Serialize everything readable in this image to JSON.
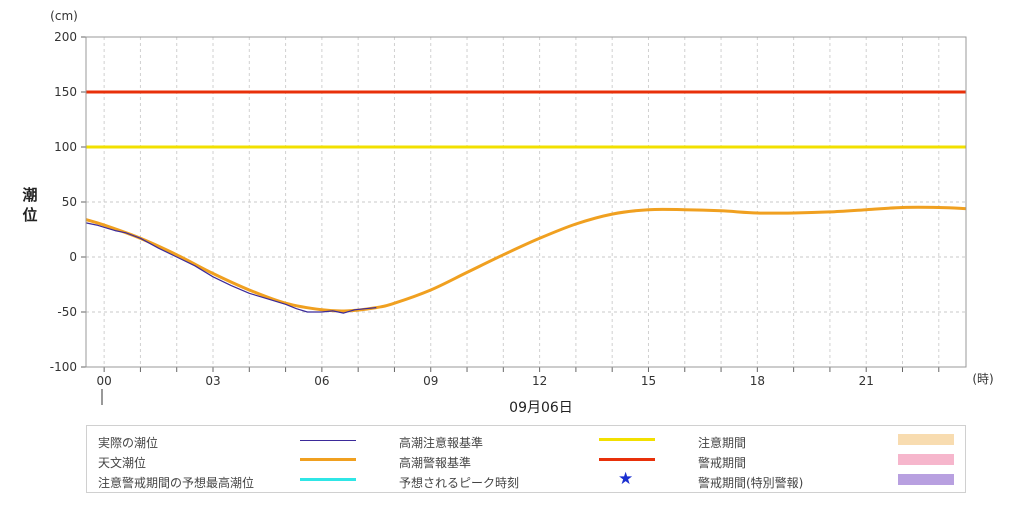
{
  "chart_data": {
    "type": "line",
    "y_unit": "(cm)",
    "y_label": "潮位",
    "x_unit": "(時)",
    "date_label": "09月06日",
    "ylim": [
      -100,
      200
    ],
    "y_ticks": [
      "200",
      "150",
      "100",
      "50",
      "0",
      "-50",
      "-100"
    ],
    "xlim": [
      -0.5,
      23.75
    ],
    "x_ticks": [
      {
        "x": 0,
        "label": "00"
      },
      {
        "x": 3,
        "label": "03"
      },
      {
        "x": 6,
        "label": "06"
      },
      {
        "x": 9,
        "label": "09"
      },
      {
        "x": 12,
        "label": "12"
      },
      {
        "x": 15,
        "label": "15"
      },
      {
        "x": 18,
        "label": "18"
      },
      {
        "x": 21,
        "label": "21"
      }
    ],
    "grid": true,
    "series": [
      {
        "name": "天文潮位",
        "color": "#f0a020",
        "x": [
          -0.5,
          0,
          1,
          2,
          3,
          4,
          5,
          6,
          6.7,
          7.5,
          8,
          9,
          10,
          11,
          12,
          13,
          14,
          15,
          16,
          17,
          18,
          19,
          20,
          21,
          22,
          23,
          23.75
        ],
        "y": [
          34,
          29,
          17,
          2,
          -15,
          -30,
          -42,
          -48,
          -49,
          -46,
          -42,
          -30,
          -14,
          2,
          17,
          30,
          39,
          43,
          43,
          42,
          40,
          40,
          41,
          43,
          45,
          45,
          44
        ]
      },
      {
        "name": "実際の潮位",
        "color": "#3b2a9a",
        "x": [
          -0.5,
          -0.2,
          0,
          0.3,
          0.6,
          1,
          1.5,
          2,
          2.5,
          3,
          3.5,
          4,
          4.5,
          5,
          5.3,
          5.6,
          6,
          6.3,
          6.6,
          6.9,
          7.2,
          7.5
        ],
        "y": [
          31,
          29,
          27,
          24,
          22,
          17,
          8,
          0,
          -8,
          -18,
          -26,
          -33,
          -38,
          -43,
          -47,
          -50,
          -50,
          -49,
          -51,
          -48,
          -47,
          -46
        ]
      },
      {
        "name": "高潮注意報基準",
        "color": "#f2e000",
        "x": [
          -0.5,
          23.75
        ],
        "y": [
          100,
          100
        ]
      },
      {
        "name": "高潮警報基準",
        "color": "#e8300a",
        "x": [
          -0.5,
          23.75
        ],
        "y": [
          150,
          150
        ]
      }
    ]
  },
  "legend": {
    "actual": "実際の潮位",
    "astro": "天文潮位",
    "max_pred": "注意警戒期間の予想最高潮位",
    "advisory_std": "高潮注意報基準",
    "warning_std": "高潮警報基準",
    "peak_time": "予想されるピーク時刻",
    "advisory_period": "注意期間",
    "warning_period": "警戒期間",
    "special_period": "警戒期間(特別警報)",
    "colors": {
      "actual": "#3b2a9a",
      "astro": "#f0a020",
      "max_pred": "#2fe6e6",
      "advisory_std": "#f2e000",
      "warning_std": "#e8300a",
      "peak_star": "#1a2fd0",
      "advisory_period": "#f8dcb0",
      "warning_period": "#f6b6cc",
      "special_period": "#b8a0e0"
    }
  }
}
